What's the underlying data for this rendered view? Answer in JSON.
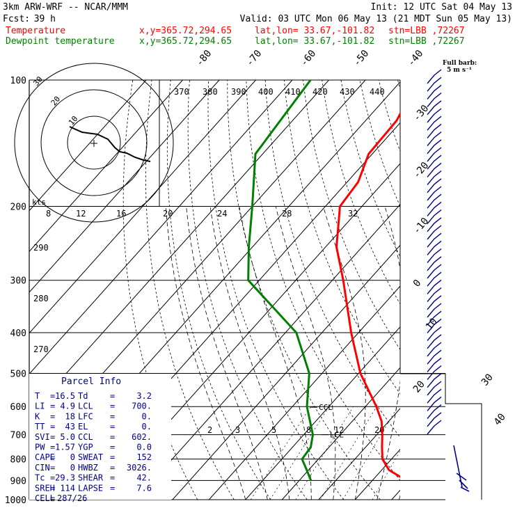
{
  "header": {
    "model": "3km ARW-WRF -- NCAR/MMM",
    "init": "Init: 12 UTC Sat 04 May 13",
    "fcst_label": "Fcst:",
    "fcst_value": "39 h",
    "valid": "Valid: 03 UTC Mon 06 May 13 (21 MDT Sun 05 May 13)",
    "temp_label": "Temperature",
    "dew_label": "Dewpoint temperature",
    "xy": "x,y=365.72,294.65",
    "latlon": "lat,lon= 33.67,-101.82",
    "stn": "stn=LBB ,72267",
    "full_barb_1": "Full barb:",
    "full_barb_2": "5 m s⁻¹"
  },
  "colors": {
    "temperature": "#ff0000",
    "dewpoint": "#008000",
    "axes": "#000000",
    "info": "#00008b",
    "barbs": "#00008b"
  },
  "chart_data": {
    "type": "line",
    "chart_kind": "skew-T log-P",
    "pressure_ticks": [
      100,
      200,
      300,
      400,
      500,
      600,
      700,
      800,
      900,
      1000
    ],
    "isotherm_labels": [
      "-80",
      "-70",
      "-60",
      "-50",
      "-40",
      "-30",
      "-20",
      "-10",
      "0",
      "10",
      "20",
      "30",
      "40"
    ],
    "theta_labels": [
      "370",
      "380",
      "390",
      "400",
      "410",
      "420",
      "430",
      "440",
      "290",
      "280",
      "270"
    ],
    "mixing_ratio_labels": [
      "8",
      "12",
      "16",
      "20",
      "24",
      "28",
      "32",
      "2",
      "3",
      "5",
      "8",
      "12",
      "20"
    ],
    "lcl_label": "LCL",
    "ccl_label": "CCL",
    "temperature": [
      {
        "p": 900,
        "t": 29.3
      },
      {
        "p": 850,
        "t": 22.0
      },
      {
        "p": 800,
        "t": 17.5
      },
      {
        "p": 750,
        "t": 14.5
      },
      {
        "p": 700,
        "t": 11.5
      },
      {
        "p": 650,
        "t": 8.0
      },
      {
        "p": 600,
        "t": 3.0
      },
      {
        "p": 500,
        "t": -9.5
      },
      {
        "p": 400,
        "t": -22.0
      },
      {
        "p": 300,
        "t": -37.0
      },
      {
        "p": 250,
        "t": -47.0
      },
      {
        "p": 200,
        "t": -56.0
      },
      {
        "p": 175,
        "t": -57.0
      },
      {
        "p": 150,
        "t": -61.0
      },
      {
        "p": 125,
        "t": -61.5
      },
      {
        "p": 100,
        "t": -65.5
      }
    ],
    "dewpoint": [
      {
        "p": 900,
        "t": 3.2
      },
      {
        "p": 850,
        "t": -0.5
      },
      {
        "p": 800,
        "t": -4.5
      },
      {
        "p": 750,
        "t": -5.0
      },
      {
        "p": 700,
        "t": -7.5
      },
      {
        "p": 600,
        "t": -16.0
      },
      {
        "p": 500,
        "t": -23.5
      },
      {
        "p": 400,
        "t": -37.0
      },
      {
        "p": 300,
        "t": -63.0
      },
      {
        "p": 250,
        "t": -71.0
      },
      {
        "p": 200,
        "t": -80.0
      },
      {
        "p": 150,
        "t": -92.0
      },
      {
        "p": 100,
        "t": -95.0
      }
    ],
    "hodograph": {
      "speed_rings_kts": [
        "10",
        "20",
        "30"
      ],
      "units_label": "kts"
    }
  },
  "parcel_info": {
    "title": "Parcel Info",
    "rows": [
      [
        "T",
        "=",
        "16.5",
        "Td",
        "=",
        "3.2"
      ],
      [
        "LI",
        "=",
        "4.9",
        "LCL",
        "=",
        "700."
      ],
      [
        "K",
        "=",
        "18",
        "LFC",
        "=",
        "0."
      ],
      [
        "TT",
        "=",
        "43",
        "EL",
        "=",
        "0."
      ],
      [
        "SVI",
        "=",
        "5.0",
        "CCL",
        "=",
        "602."
      ],
      [
        "PW",
        "=",
        "1.57",
        "YGP",
        "=",
        "0.0"
      ],
      [
        "CAPE",
        "=",
        "0",
        "SWEAT",
        "=",
        "152"
      ],
      [
        "CIN",
        "=",
        "0",
        "HWBZ",
        "=",
        "3026."
      ],
      [
        "Tc",
        "=",
        "29.3",
        "SHEAR",
        "=",
        "42."
      ],
      [
        "SREH",
        "=",
        "114",
        "LAPSE",
        "=",
        "7.6"
      ],
      [
        "CELL",
        "=",
        "287/26",
        "",
        "",
        ""
      ]
    ]
  }
}
